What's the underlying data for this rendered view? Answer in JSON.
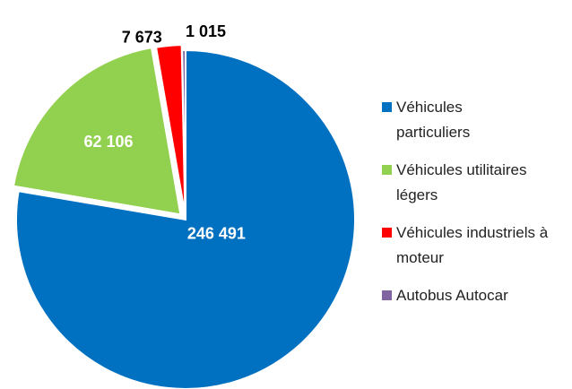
{
  "chart_data": {
    "type": "pie",
    "categories": [
      "Véhicules particuliers",
      "Véhicules utilitaires légers",
      "Véhicules industriels à moteur",
      "Autobus Autocar"
    ],
    "values": [
      246491,
      62106,
      7673,
      1015
    ],
    "value_labels": [
      "246 491",
      "62 106",
      "7 673",
      "1 015"
    ],
    "colors": [
      "#0070c0",
      "#92d050",
      "#ff0000",
      "#8064a2"
    ],
    "legend": "right"
  }
}
